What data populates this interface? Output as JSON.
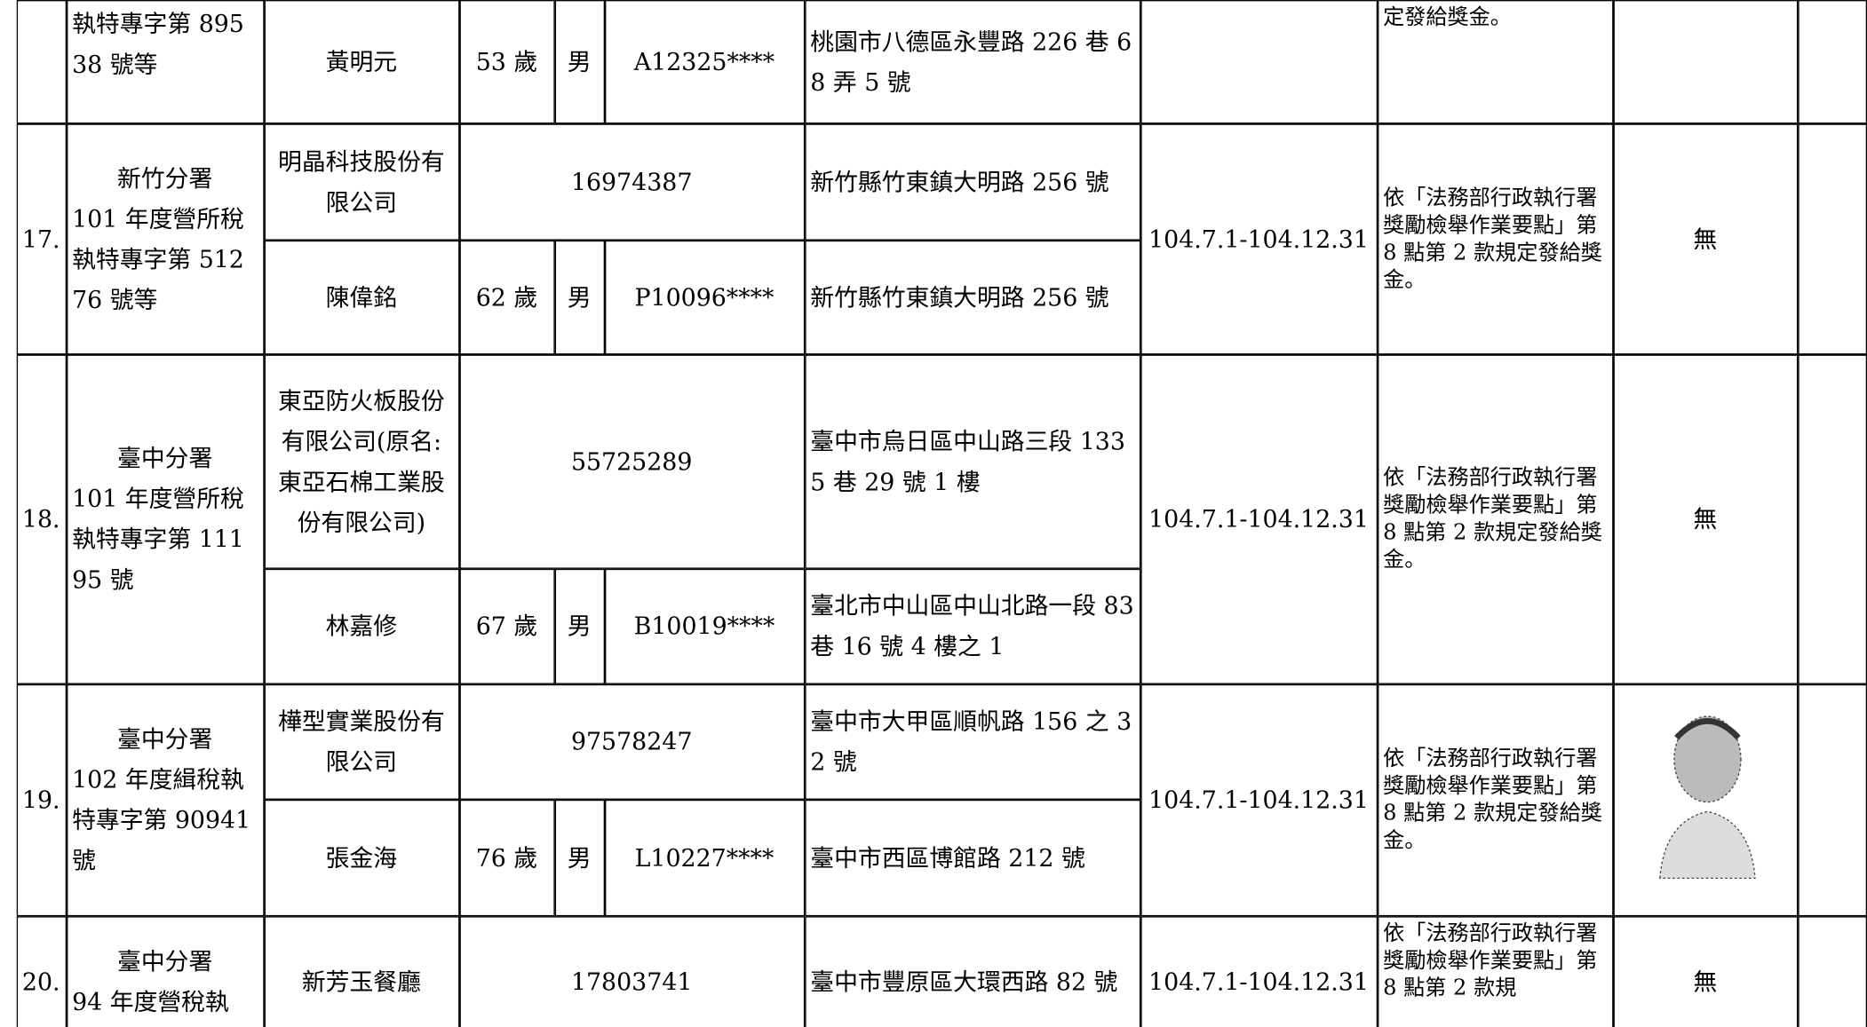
{
  "table": {
    "rows": [
      {
        "case": {
          "docket": "執特專字第 89538 號等"
        },
        "entries": [
          {
            "name": "黃明元",
            "age": "53 歲",
            "sex": "男",
            "id": "A12325****",
            "address": "桃園市八德區永豐路 226 巷 68 弄 5 號"
          }
        ],
        "reason": "定發給獎金。"
      },
      {
        "no": "17.",
        "case": {
          "office": "新竹分署",
          "docket": "101 年度營所稅執特專字第 51276 號等"
        },
        "entries": [
          {
            "name": "明晶科技股份有限公司",
            "tax_id": "16974387",
            "address": "新竹縣竹東鎮大明路 256 號"
          },
          {
            "name": "陳偉銘",
            "age": "62 歲",
            "sex": "男",
            "id": "P10096****",
            "address": "新竹縣竹東鎮大明路 256 號"
          }
        ],
        "period": "104.7.1-104.12.31",
        "reason": "依「法務部行政執行署獎勵檢舉作業要點」第 8 點第 2 款規定發給獎金。",
        "photo": "無"
      },
      {
        "no": "18.",
        "case": {
          "office": "臺中分署",
          "docket": "101 年度營所稅執特專字第 11195 號"
        },
        "entries": [
          {
            "name": "東亞防火板股份有限公司(原名:東亞石棉工業股份有限公司)",
            "tax_id": "55725289",
            "address": "臺中市烏日區中山路三段 1335 巷 29 號 1 樓"
          },
          {
            "name": "林嘉修",
            "age": "67 歲",
            "sex": "男",
            "id": "B10019****",
            "address": "臺北市中山區中山北路一段 83 巷 16 號 4 樓之 1"
          }
        ],
        "period": "104.7.1-104.12.31",
        "reason": "依「法務部行政執行署獎勵檢舉作業要點」第 8 點第 2 款規定發給獎金。",
        "photo": "無"
      },
      {
        "no": "19.",
        "case": {
          "office": "臺中分署",
          "docket": "102 年度緝稅執特專字第 90941 號"
        },
        "entries": [
          {
            "name": "樺型實業股份有限公司",
            "tax_id": "97578247",
            "address": "臺中市大甲區順帆路 156 之 32 號"
          },
          {
            "name": "張金海",
            "age": "76 歲",
            "sex": "男",
            "id": "L10227****",
            "address": "臺中市西區博館路 212 號"
          }
        ],
        "period": "104.7.1-104.12.31",
        "reason": "依「法務部行政執行署獎勵檢舉作業要點」第 8 點第 2 款規定發給獎金。"
      },
      {
        "no": "20.",
        "case": {
          "office": "臺中分署",
          "docket": "94 年度營稅執"
        },
        "entries": [
          {
            "name": "新芳玉餐廳",
            "tax_id": "17803741",
            "address": "臺中市豐原區大環西路 82 號"
          }
        ],
        "period": "104.7.1-104.12.31",
        "reason": "依「法務部行政執行署獎勵檢舉作業要點」第 8 點第 2 款規",
        "photo": "無"
      }
    ]
  }
}
